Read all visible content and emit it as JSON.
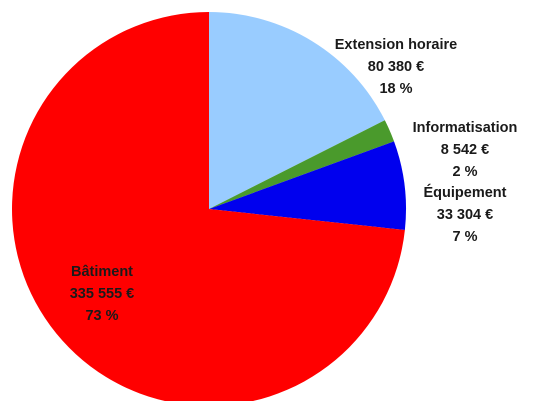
{
  "chart_data": {
    "type": "pie",
    "categories": [
      "Extension horaire",
      "Informatisation",
      "Équipement",
      "Bâtiment"
    ],
    "values": [
      80380,
      8542,
      33304,
      335555
    ],
    "value_labels": [
      "80 380 €",
      "8 542 €",
      "33 304 €",
      "335 555 €"
    ],
    "percent_labels": [
      "18 %",
      "2 %",
      "7 %",
      "73 %"
    ],
    "colors": [
      "#99ccff",
      "#4a9a2c",
      "#0000ee",
      "#ff0000"
    ]
  }
}
